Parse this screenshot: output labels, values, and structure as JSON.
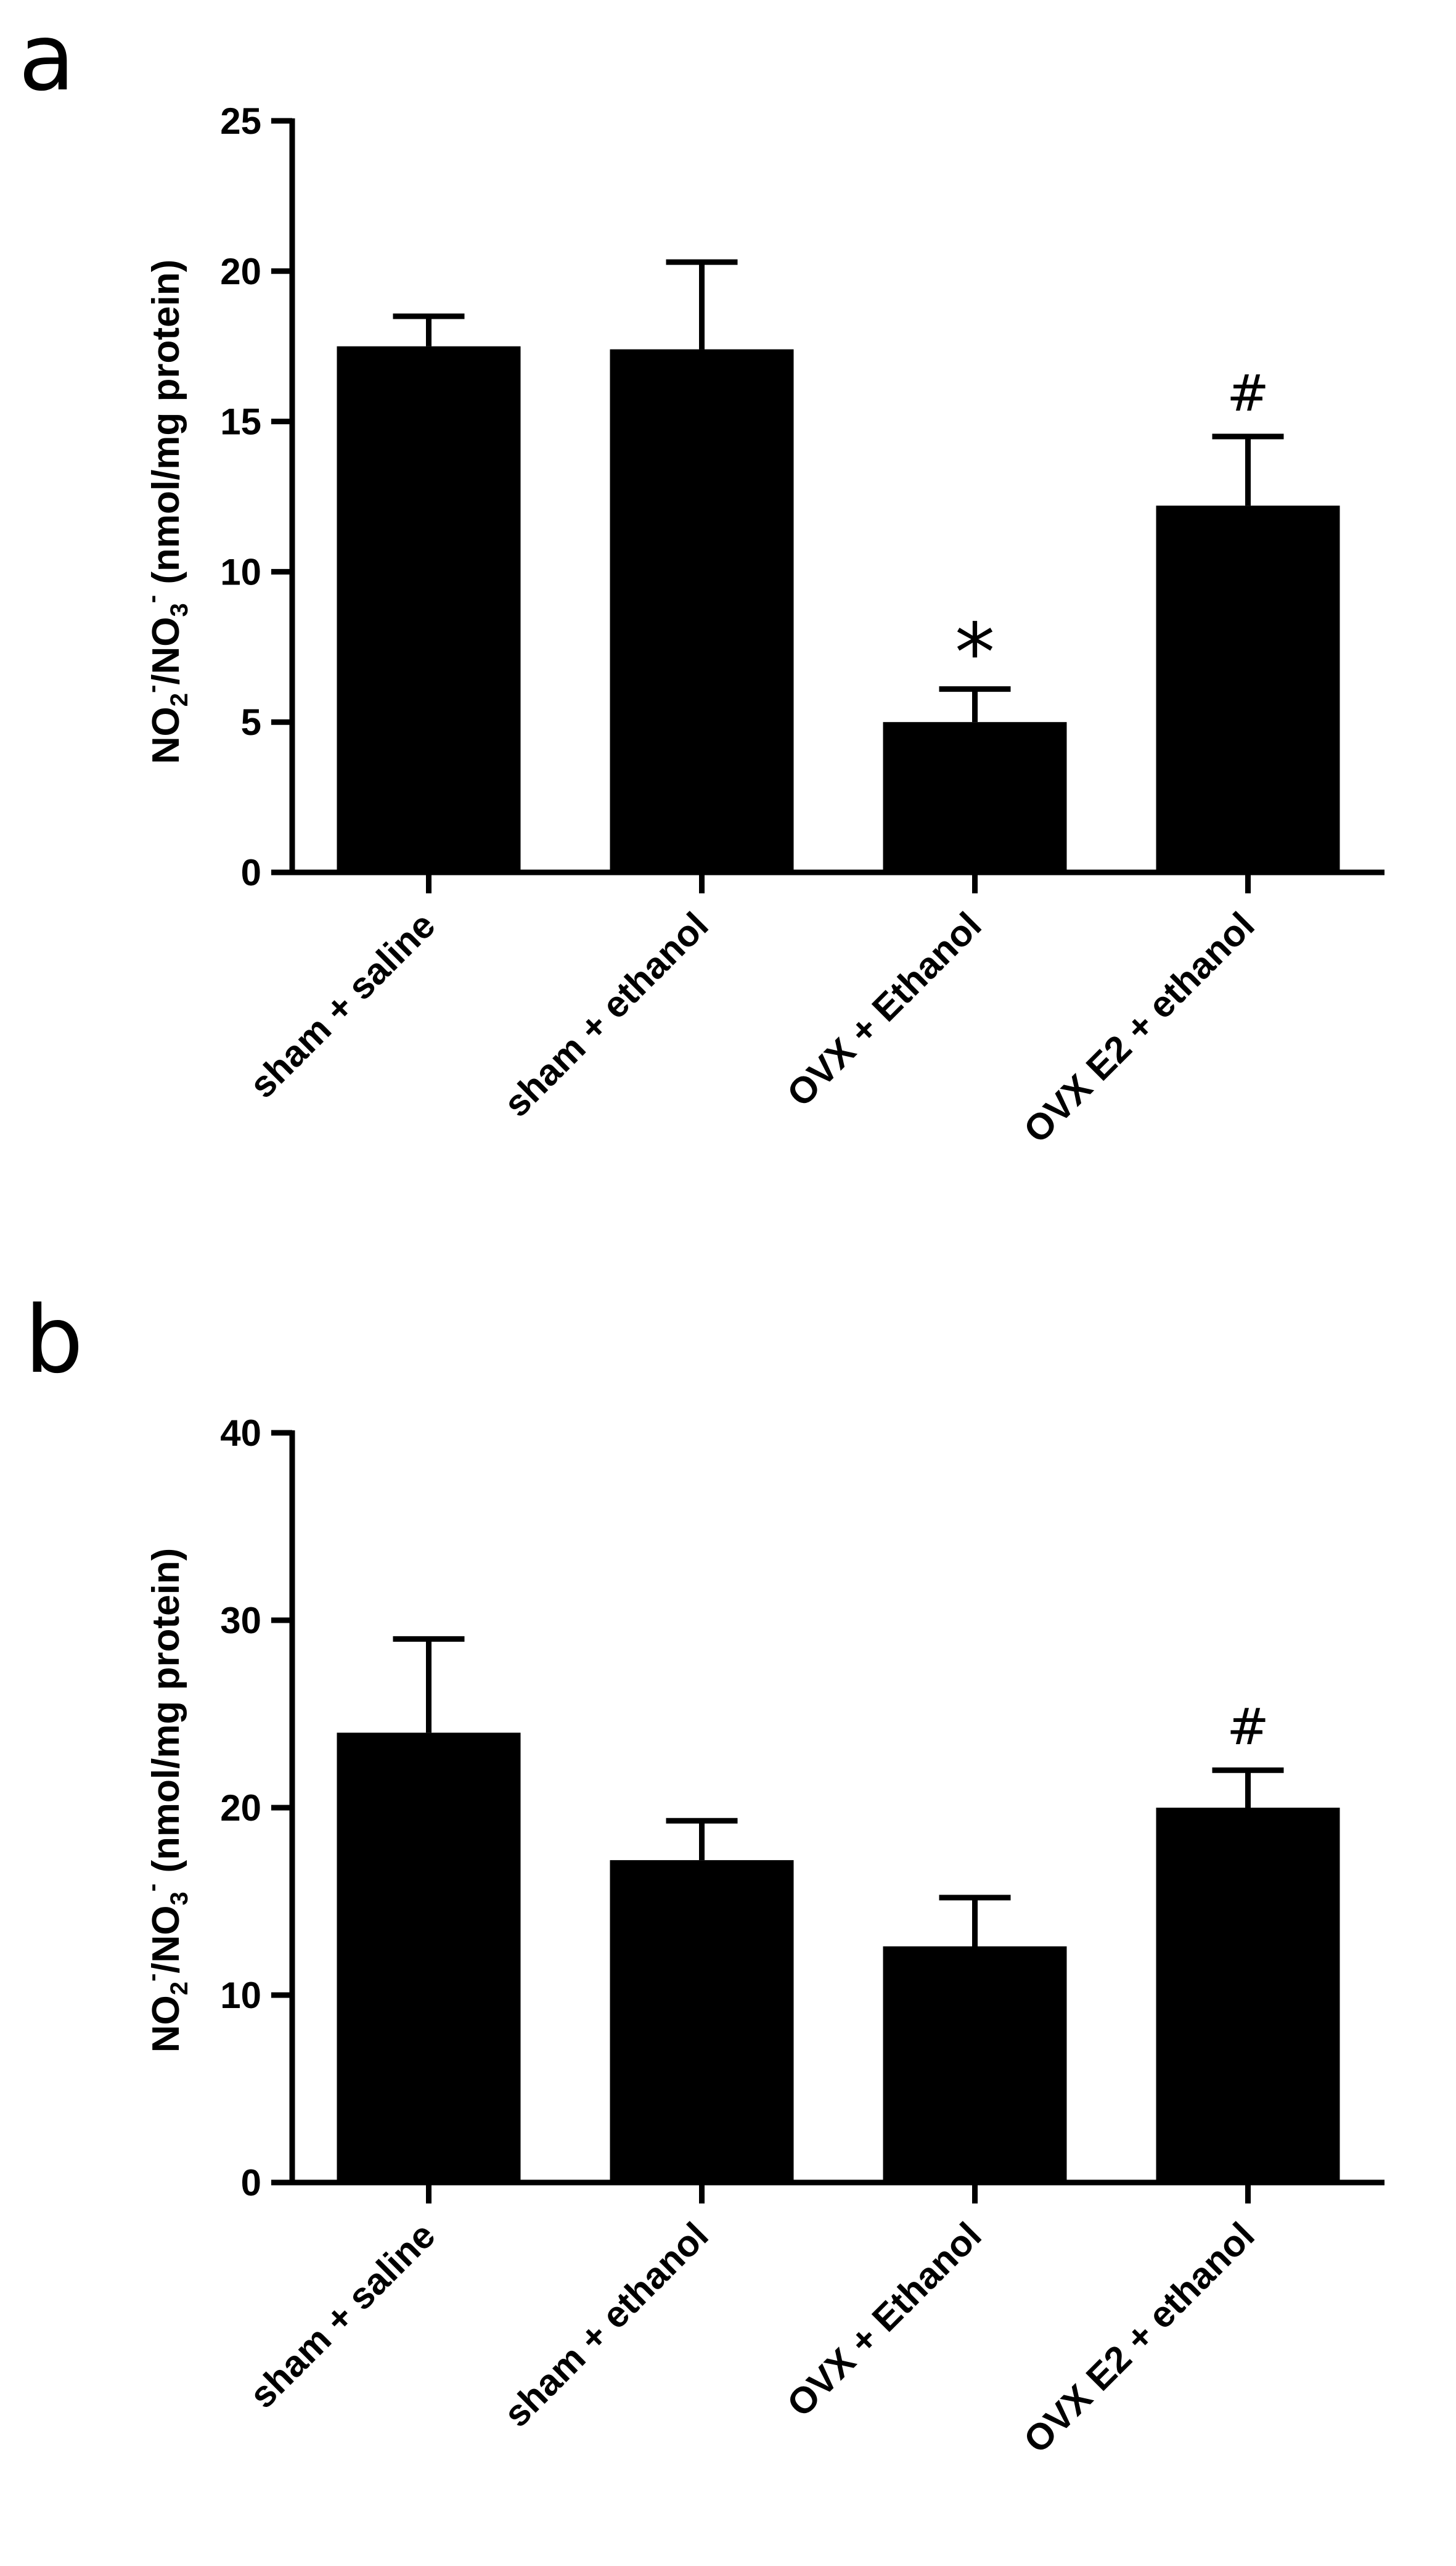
{
  "chart_data": [
    {
      "panel": "a",
      "type": "bar",
      "categories": [
        "sham + saline",
        "sham + ethanol",
        "OVX + Ethanol",
        "OVX E2 + ethanol"
      ],
      "values": [
        17.5,
        17.4,
        5.0,
        12.2
      ],
      "errors": [
        1.0,
        2.9,
        1.1,
        2.3
      ],
      "annotations": [
        "",
        "",
        "*",
        "#"
      ],
      "ylabel": "NO2-/NO3- (nmol/mg protein)",
      "ylabel_parts": {
        "a": "NO",
        "b": "2",
        "c": "-",
        "d": "/NO",
        "e": "3",
        "f": "-",
        "g": " (nmol/mg protein)"
      },
      "ylim": [
        0,
        25
      ],
      "yticks": [
        0,
        5,
        10,
        15,
        20,
        25
      ],
      "xlabel": "",
      "title": ""
    },
    {
      "panel": "b",
      "type": "bar",
      "categories": [
        "sham + saline",
        "sham + ethanol",
        "OVX + Ethanol",
        "OVX E2 + ethanol"
      ],
      "values": [
        24.0,
        17.2,
        12.6,
        20.0
      ],
      "errors": [
        5.0,
        2.1,
        2.6,
        2.0
      ],
      "annotations": [
        "",
        "",
        "",
        "#"
      ],
      "ylabel": "NO2-/NO3- (nmol/mg protein)",
      "ylabel_parts": {
        "a": "NO",
        "b": "2",
        "c": "-",
        "d": "/NO",
        "e": "3",
        "f": "-",
        "g": " (nmol/mg protein)"
      },
      "ylim": [
        0,
        40
      ],
      "yticks": [
        0,
        10,
        20,
        30,
        40
      ],
      "xlabel": "",
      "title": ""
    }
  ]
}
